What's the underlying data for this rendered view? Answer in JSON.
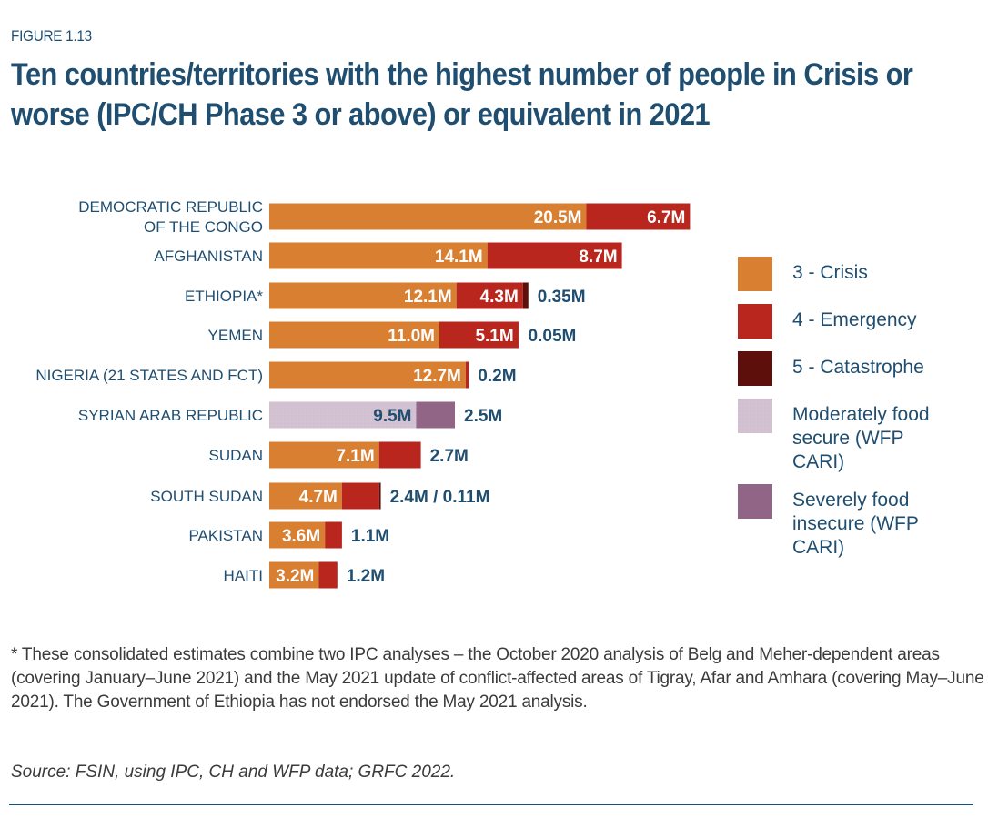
{
  "figure_label": "FIGURE 1.13",
  "title": "Ten countries/territories with the highest number of people in Crisis or worse (IPC/CH Phase 3 or above) or equivalent in 2021",
  "colors": {
    "crisis": "#d97f32",
    "emergency": "#b9261e",
    "catastrophe": "#5c0f0b",
    "moderate": "#d3c2d1",
    "severe": "#916586",
    "text": "#1f4e70"
  },
  "chart_data": {
    "type": "bar",
    "orientation": "horizontal",
    "stacked": true,
    "title": "Ten countries/territories with the highest number of people in Crisis or worse (IPC/CH Phase 3 or above) or equivalent in 2021",
    "xlabel": "",
    "ylabel": "",
    "unit": "millions of people",
    "grid": false,
    "legend_position": "right",
    "categories": [
      [
        "DEMOCRATIC REPUBLIC",
        "OF THE CONGO"
      ],
      [
        "AFGHANISTAN"
      ],
      [
        "ETHIOPIA*"
      ],
      [
        "YEMEN"
      ],
      [
        "NIGERIA (21 STATES AND FCT)"
      ],
      [
        "SYRIAN ARAB REPUBLIC"
      ],
      [
        "SUDAN"
      ],
      [
        "SOUTH SUDAN"
      ],
      [
        "PAKISTAN"
      ],
      [
        "HAITI"
      ]
    ],
    "series": [
      {
        "name": "3 - Crisis",
        "key": "crisis",
        "values": [
          20.5,
          14.1,
          12.1,
          11.0,
          12.7,
          0,
          7.1,
          4.7,
          3.6,
          3.2
        ]
      },
      {
        "name": "4 - Emergency",
        "key": "emergency",
        "values": [
          6.7,
          8.7,
          4.3,
          5.1,
          0.2,
          0,
          2.7,
          2.4,
          1.1,
          1.2
        ]
      },
      {
        "name": "5 - Catastrophe",
        "key": "catastrophe",
        "values": [
          0,
          0,
          0.35,
          0.05,
          0,
          0,
          0,
          0.11,
          0,
          0
        ]
      },
      {
        "name": "Moderately food secure (WFP CARI)",
        "key": "moderate",
        "values": [
          0,
          0,
          0,
          0,
          0,
          9.5,
          0,
          0,
          0,
          0
        ]
      },
      {
        "name": "Severely food insecure (WFP CARI)",
        "key": "severe",
        "values": [
          0,
          0,
          0,
          0,
          0,
          2.5,
          0,
          0,
          0,
          0
        ]
      }
    ],
    "labels": [
      {
        "inside": [
          "20.5M",
          "6.7M"
        ],
        "outside": ""
      },
      {
        "inside": [
          "14.1M",
          "8.7M"
        ],
        "outside": ""
      },
      {
        "inside": [
          "12.1M",
          "4.3M"
        ],
        "outside": "0.35M"
      },
      {
        "inside": [
          "11.0M",
          "5.1M"
        ],
        "outside": "0.05M"
      },
      {
        "inside": [
          "12.7M"
        ],
        "outside": "0.2M"
      },
      {
        "inside": [
          "9.5M"
        ],
        "outside": "2.5M"
      },
      {
        "inside": [
          "7.1M"
        ],
        "outside": "2.7M"
      },
      {
        "inside": [
          "4.7M"
        ],
        "outside": "2.4M / 0.11M"
      },
      {
        "inside": [
          "3.6M"
        ],
        "outside": "1.1M"
      },
      {
        "inside": [
          "3.2M"
        ],
        "outside": "1.2M"
      }
    ],
    "xlim": [
      0,
      28
    ]
  },
  "legend": [
    {
      "key": "crisis",
      "lines": [
        "3 - Crisis"
      ]
    },
    {
      "key": "emergency",
      "lines": [
        "4 - Emergency"
      ]
    },
    {
      "key": "catastrophe",
      "lines": [
        "5 - Catastrophe"
      ]
    },
    {
      "key": "moderate",
      "lines": [
        "Moderately food",
        "secure (WFP",
        "CARI)"
      ]
    },
    {
      "key": "severe",
      "lines": [
        "Severely food",
        "insecure (WFP",
        "CARI)"
      ]
    }
  ],
  "footnote": "* These consolidated estimates combine two IPC analyses – the October 2020 analysis of Belg and Meher-dependent areas (covering January–June 2021) and the May 2021 update of conflict-affected areas of Tigray, Afar and Amhara (covering May–June 2021). The Government of Ethiopia has not endorsed the May 2021 analysis.",
  "source": "Source: FSIN, using IPC, CH and WFP data; GRFC 2022."
}
